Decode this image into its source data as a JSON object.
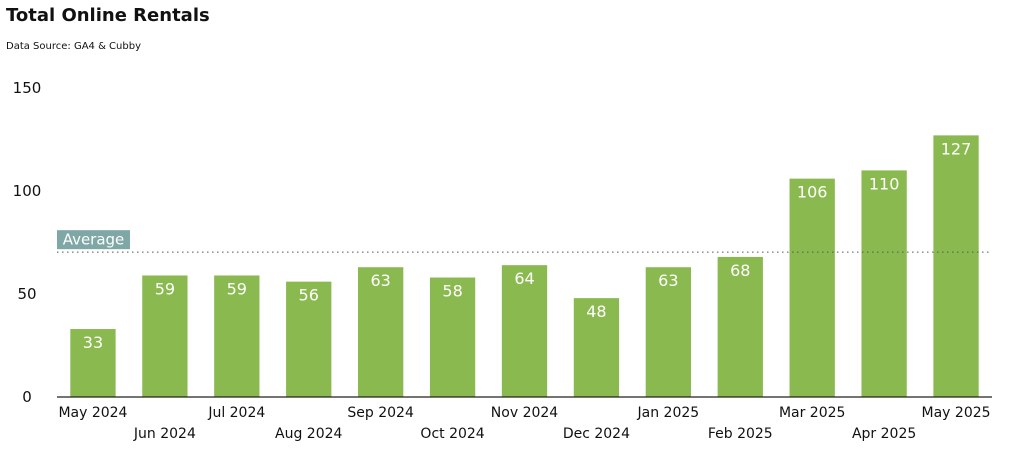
{
  "chart_data": {
    "type": "bar",
    "title": "Total Online Rentals",
    "subtitle": "Data Source: GA4 & Cubby",
    "xlabel": "",
    "ylabel": "",
    "categories": [
      "May 2024",
      "Jun 2024",
      "Jul 2024",
      "Aug 2024",
      "Sep 2024",
      "Oct 2024",
      "Nov 2024",
      "Dec 2024",
      "Jan 2025",
      "Feb 2025",
      "Mar 2025",
      "Apr 2025",
      "May 2025"
    ],
    "values": [
      33,
      59,
      59,
      56,
      63,
      58,
      64,
      48,
      63,
      68,
      106,
      110,
      127
    ],
    "ylim": [
      0,
      150
    ],
    "yticks": [
      0,
      50,
      100,
      150
    ],
    "grid": false,
    "legend": "none",
    "bar_color": "#8aba4f",
    "average": {
      "label": "Average",
      "label_bg": "#7fa7a5",
      "line_color": "#555555"
    }
  }
}
